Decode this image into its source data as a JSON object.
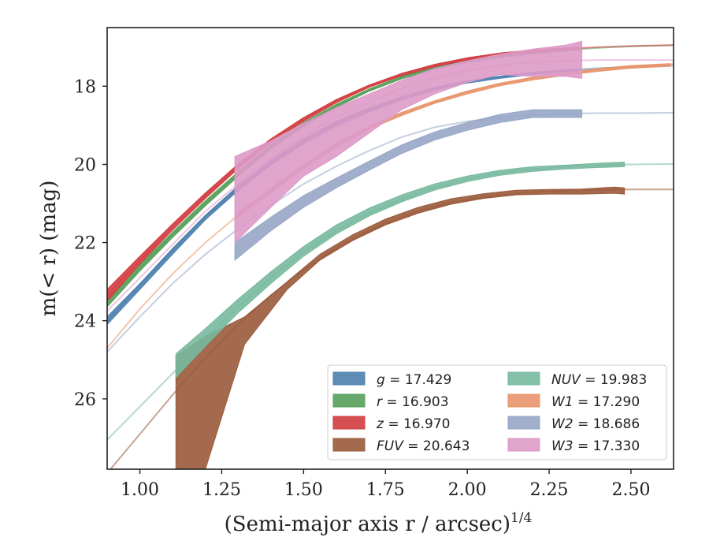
{
  "chart_data": {
    "type": "line",
    "xlabel": "(Semi-major axis r / arcsec)",
    "xlabel_superscript": "1/4",
    "ylabel": "m(< r) (mag)",
    "xlim": [
      0.9,
      2.63
    ],
    "ylim": [
      27.8,
      16.5
    ],
    "x_ticks": [
      "1.00",
      "1.25",
      "1.50",
      "1.75",
      "2.00",
      "2.25",
      "2.50"
    ],
    "y_ticks": [
      "18",
      "20",
      "22",
      "24",
      "26"
    ],
    "grid": false,
    "legend_position": "lower-right",
    "series": [
      {
        "name": "g = 17.429",
        "legend_var": "g",
        "legend_val": "= 17.429",
        "color": "#4c7fae",
        "model_x": [
          0.9,
          1.0,
          1.1,
          1.2,
          1.3,
          1.4,
          1.5,
          1.6,
          1.7,
          1.8,
          1.9,
          2.0,
          2.1,
          2.2,
          2.3,
          2.4,
          2.5,
          2.63
        ],
        "model_y": [
          24.0,
          23.1,
          22.2,
          21.35,
          20.6,
          19.95,
          19.4,
          18.95,
          18.6,
          18.3,
          18.05,
          17.88,
          17.76,
          17.66,
          17.59,
          17.54,
          17.5,
          17.47
        ],
        "band_x": [
          0.9,
          1.0,
          1.1,
          1.2,
          1.3,
          1.4,
          1.5,
          1.6,
          1.7,
          1.8,
          1.9,
          2.0,
          2.1,
          2.2,
          2.3,
          2.35
        ],
        "band_low": [
          23.9,
          23.05,
          22.15,
          21.3,
          20.55,
          19.9,
          19.35,
          18.9,
          18.56,
          18.27,
          18.03,
          17.86,
          17.74,
          17.64,
          17.58,
          17.55
        ],
        "band_high": [
          24.1,
          23.2,
          22.3,
          21.42,
          20.67,
          20.02,
          19.47,
          19.02,
          18.66,
          18.35,
          18.1,
          17.92,
          17.8,
          17.7,
          17.63,
          17.6
        ]
      },
      {
        "name": "r = 16.903",
        "legend_var": "r",
        "legend_val": "= 16.903",
        "color": "#55a05a",
        "model_x": [
          0.9,
          1.0,
          1.1,
          1.2,
          1.3,
          1.4,
          1.5,
          1.6,
          1.7,
          1.8,
          1.9,
          2.0,
          2.1,
          2.2,
          2.3,
          2.4,
          2.5,
          2.63
        ],
        "model_y": [
          23.55,
          22.65,
          21.8,
          21.0,
          20.25,
          19.55,
          18.98,
          18.5,
          18.1,
          17.78,
          17.54,
          17.36,
          17.23,
          17.14,
          17.07,
          17.02,
          16.98,
          16.95
        ],
        "band_x": [
          0.9,
          1.0,
          1.1,
          1.2,
          1.3,
          1.4,
          1.5,
          1.6,
          1.7,
          1.8,
          1.9,
          2.0,
          2.1,
          2.2,
          2.3,
          2.35
        ],
        "band_low": [
          23.45,
          22.57,
          21.73,
          20.93,
          20.19,
          19.5,
          18.93,
          18.46,
          18.07,
          17.75,
          17.51,
          17.33,
          17.2,
          17.12,
          17.05,
          17.03
        ],
        "band_high": [
          23.65,
          22.73,
          21.87,
          21.06,
          20.31,
          19.6,
          19.03,
          18.54,
          18.13,
          17.81,
          17.57,
          17.39,
          17.26,
          17.17,
          17.1,
          17.07
        ]
      },
      {
        "name": "z = 16.970",
        "legend_var": "z",
        "legend_val": "= 16.970",
        "color": "#d13c3f",
        "model_x": [
          0.9,
          1.0,
          1.1,
          1.2,
          1.3,
          1.4,
          1.5,
          1.6,
          1.7,
          1.8,
          1.9,
          2.0,
          2.1,
          2.2,
          2.3,
          2.4,
          2.5,
          2.63
        ],
        "model_y": [
          23.35,
          22.45,
          21.6,
          20.8,
          20.05,
          19.4,
          18.85,
          18.38,
          18.0,
          17.7,
          17.47,
          17.3,
          17.18,
          17.1,
          17.04,
          17.0,
          16.97,
          16.95
        ],
        "band_x": [
          0.9,
          1.0,
          1.1,
          1.2,
          1.3,
          1.4,
          1.5,
          1.6,
          1.7,
          1.8,
          1.9,
          2.0,
          2.1,
          2.2,
          2.3,
          2.35
        ],
        "band_low": [
          23.2,
          22.35,
          21.52,
          20.73,
          19.99,
          19.35,
          18.8,
          18.34,
          17.97,
          17.67,
          17.44,
          17.27,
          17.15,
          17.07,
          17.02,
          17.0
        ],
        "band_high": [
          23.5,
          22.55,
          21.68,
          20.87,
          20.11,
          19.45,
          18.9,
          18.42,
          18.03,
          17.73,
          17.5,
          17.33,
          17.21,
          17.13,
          17.07,
          17.05
        ]
      },
      {
        "name": "FUV = 20.643",
        "legend_var": "FUV",
        "legend_val": "= 20.643",
        "color": "#9a5a3a",
        "model_x": [
          0.9,
          1.0,
          1.1,
          1.2,
          1.3,
          1.4,
          1.5,
          1.6,
          1.7,
          1.8,
          1.9,
          2.0,
          2.1,
          2.2,
          2.3,
          2.4,
          2.5,
          2.63
        ],
        "model_y": [
          27.9,
          26.9,
          25.9,
          24.95,
          24.1,
          23.35,
          22.7,
          22.15,
          21.7,
          21.35,
          21.08,
          20.9,
          20.78,
          20.71,
          20.67,
          20.65,
          20.64,
          20.64
        ],
        "band_x": [
          1.11,
          1.2,
          1.32,
          1.45,
          1.55,
          1.65,
          1.75,
          1.85,
          1.95,
          2.05,
          2.15,
          2.25,
          2.35,
          2.45,
          2.48
        ],
        "band_low": [
          24.9,
          24.4,
          23.9,
          23.0,
          22.3,
          21.8,
          21.4,
          21.1,
          20.88,
          20.75,
          20.66,
          20.64,
          20.63,
          20.58,
          20.6
        ],
        "band_high": [
          27.8,
          27.8,
          24.6,
          23.2,
          22.45,
          21.95,
          21.55,
          21.25,
          21.02,
          20.87,
          20.78,
          20.76,
          20.76,
          20.74,
          20.76
        ]
      },
      {
        "name": "NUV = 19.983",
        "legend_var": "NUV",
        "legend_val": "= 19.983",
        "color": "#78b9a0",
        "model_x": [
          0.9,
          1.0,
          1.1,
          1.2,
          1.3,
          1.4,
          1.5,
          1.6,
          1.7,
          1.8,
          1.9,
          2.0,
          2.1,
          2.2,
          2.3,
          2.4,
          2.5,
          2.63
        ],
        "model_y": [
          27.05,
          26.2,
          25.35,
          24.45,
          23.65,
          22.9,
          22.25,
          21.7,
          21.25,
          20.9,
          20.6,
          20.38,
          20.22,
          20.12,
          20.06,
          20.02,
          20.0,
          19.99
        ],
        "band_x": [
          1.11,
          1.2,
          1.3,
          1.4,
          1.5,
          1.6,
          1.7,
          1.8,
          1.9,
          2.0,
          2.1,
          2.2,
          2.3,
          2.4,
          2.48
        ],
        "band_low": [
          24.85,
          24.2,
          23.45,
          22.75,
          22.1,
          21.55,
          21.12,
          20.78,
          20.5,
          20.3,
          20.15,
          20.06,
          20.02,
          19.97,
          19.94
        ],
        "band_high": [
          25.45,
          24.65,
          23.8,
          23.05,
          22.35,
          21.78,
          21.32,
          20.96,
          20.66,
          20.44,
          20.28,
          20.18,
          20.12,
          20.08,
          20.06
        ]
      },
      {
        "name": "W1 = 17.290",
        "legend_var": "W1",
        "legend_val": "= 17.290",
        "color": "#e8946a",
        "model_x": [
          0.9,
          1.0,
          1.1,
          1.2,
          1.3,
          1.4,
          1.5,
          1.6,
          1.7,
          1.8,
          1.9,
          2.0,
          2.1,
          2.2,
          2.3,
          2.4,
          2.5,
          2.63
        ],
        "model_y": [
          24.7,
          23.7,
          22.8,
          22.0,
          21.3,
          20.65,
          20.05,
          19.5,
          19.05,
          18.7,
          18.4,
          18.15,
          17.95,
          17.8,
          17.68,
          17.58,
          17.5,
          17.43
        ],
        "band_x": [
          1.29,
          1.4,
          1.5,
          1.6,
          1.7,
          1.8,
          1.9,
          2.0,
          2.1,
          2.2,
          2.3,
          2.4,
          2.5,
          2.62
        ],
        "band_low": [
          21.3,
          20.62,
          20.02,
          19.47,
          19.02,
          18.67,
          18.37,
          18.12,
          17.92,
          17.77,
          17.65,
          17.55,
          17.47,
          17.42
        ],
        "band_high": [
          21.42,
          20.72,
          20.11,
          19.56,
          19.1,
          18.75,
          18.44,
          18.2,
          17.99,
          17.84,
          17.72,
          17.62,
          17.54,
          17.49
        ]
      },
      {
        "name": "W2 = 18.686",
        "legend_var": "W2",
        "legend_val": "= 18.686",
        "color": "#97a6c7",
        "model_x": [
          0.9,
          1.0,
          1.1,
          1.2,
          1.3,
          1.4,
          1.5,
          1.6,
          1.7,
          1.8,
          1.9,
          2.0,
          2.1,
          2.2,
          2.3,
          2.4,
          2.5,
          2.63
        ],
        "model_y": [
          24.8,
          23.9,
          23.05,
          22.3,
          21.65,
          21.05,
          20.5,
          20.05,
          19.65,
          19.3,
          19.05,
          18.9,
          18.8,
          18.74,
          18.7,
          18.69,
          18.69,
          18.68
        ],
        "band_x": [
          1.29,
          1.4,
          1.5,
          1.6,
          1.7,
          1.8,
          1.9,
          2.0,
          2.1,
          2.2,
          2.25,
          2.35
        ],
        "band_low": [
          22.0,
          21.35,
          20.8,
          20.35,
          19.92,
          19.5,
          19.17,
          18.93,
          18.72,
          18.6,
          18.6,
          18.6
        ],
        "band_high": [
          22.45,
          21.7,
          21.1,
          20.6,
          20.15,
          19.72,
          19.38,
          19.13,
          18.93,
          18.8,
          18.8,
          18.8
        ]
      },
      {
        "name": "W3 = 17.330",
        "legend_var": "W3",
        "legend_val": "= 17.330",
        "color": "#dd9ac8",
        "model_x": [
          0.9,
          1.0,
          1.1,
          1.2,
          1.3,
          1.4,
          1.5,
          1.6,
          1.7,
          1.8,
          1.9,
          2.0,
          2.1,
          2.2,
          2.3,
          2.4,
          2.5,
          2.63
        ],
        "model_y": [
          23.75,
          22.9,
          22.05,
          21.2,
          20.5,
          19.85,
          19.28,
          18.8,
          18.4,
          18.05,
          17.8,
          17.6,
          17.47,
          17.39,
          17.35,
          17.33,
          17.33,
          17.33
        ],
        "band_x": [
          1.29,
          1.4,
          1.5,
          1.6,
          1.7,
          1.8,
          1.9,
          2.0,
          2.1,
          2.2,
          2.3,
          2.35
        ],
        "band_low": [
          19.8,
          19.4,
          18.95,
          18.55,
          18.2,
          17.85,
          17.55,
          17.35,
          17.18,
          17.05,
          16.95,
          16.85
        ],
        "band_high": [
          22.0,
          21.1,
          20.3,
          19.8,
          19.2,
          18.6,
          18.2,
          17.9,
          17.7,
          17.75,
          17.75,
          17.8
        ]
      }
    ]
  }
}
